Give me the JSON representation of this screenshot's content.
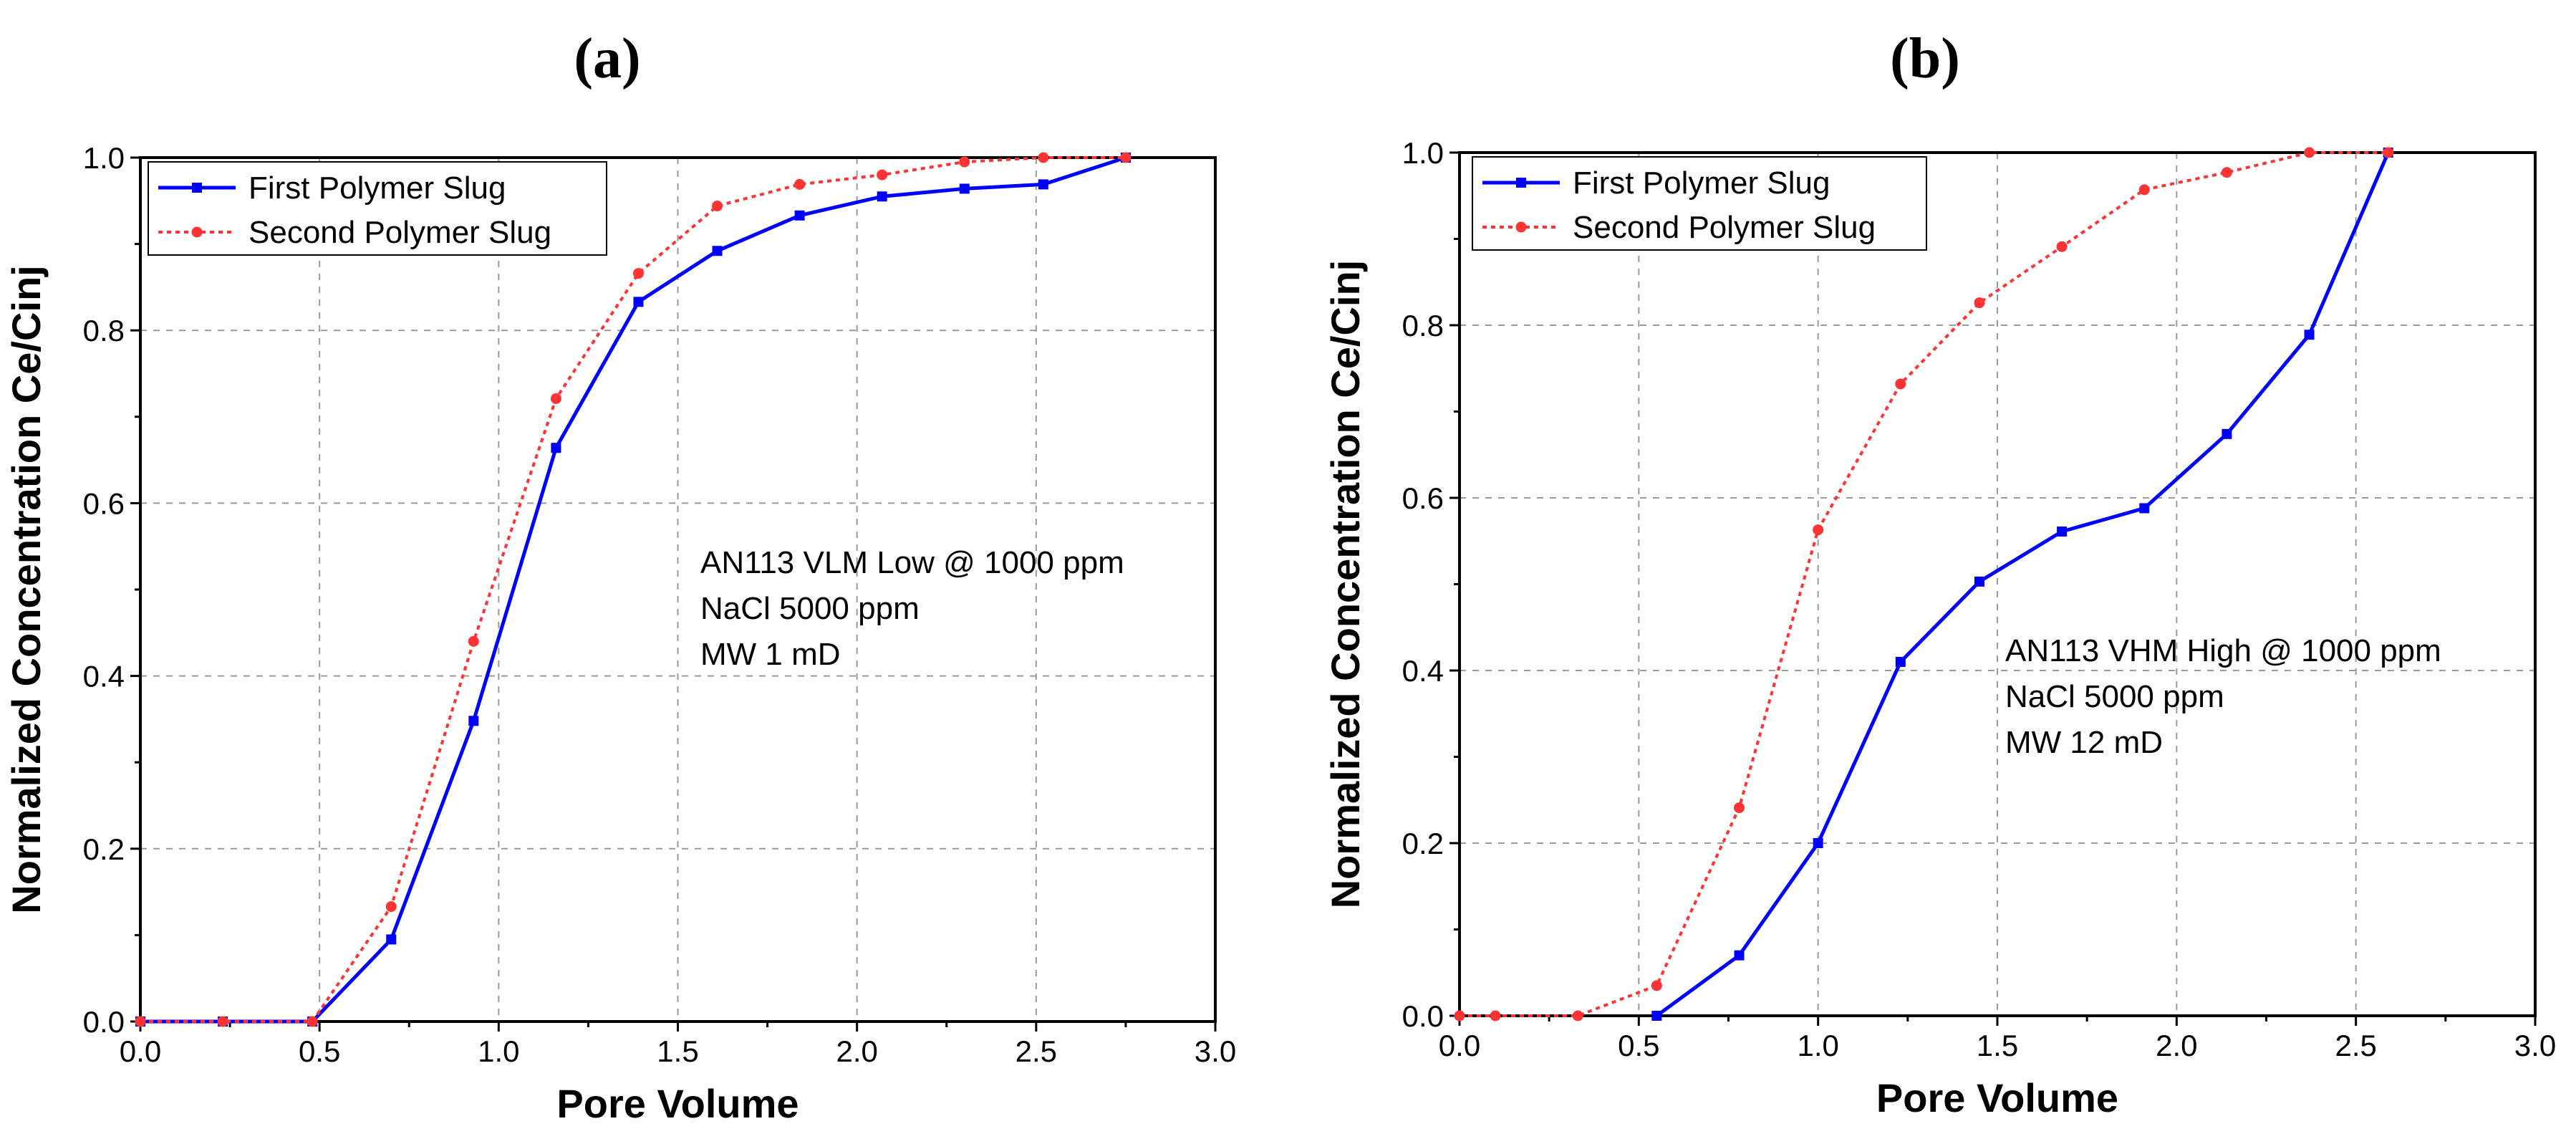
{
  "chart_data": [
    {
      "type": "line",
      "panel_label": "(a)",
      "xlabel": "Pore Volume",
      "ylabel": "Normalized Concentration Ce/Cinj",
      "xlim": [
        0,
        3.0
      ],
      "ylim": [
        0,
        1.0
      ],
      "xticks": [
        "0.0",
        "0.5",
        "1.0",
        "1.5",
        "2.0",
        "2.5",
        "3.0"
      ],
      "yticks": [
        "0.0",
        "0.2",
        "0.4",
        "0.6",
        "0.8",
        "1.0"
      ],
      "grid": true,
      "legend_position": "top-left",
      "annotation": [
        "AN113 VLM Low @ 1000 ppm",
        "NaCl 5000 ppm",
        "MW 1 mD"
      ],
      "series": [
        {
          "name": "First Polymer Slug",
          "color": "#0000ff",
          "style": "solid",
          "marker": "square",
          "x": [
            0.0,
            0.23,
            0.48,
            0.7,
            0.93,
            1.16,
            1.39,
            1.61,
            1.84,
            2.07,
            2.3,
            2.52,
            2.75
          ],
          "y": [
            0.0,
            0.0,
            0.0,
            0.095,
            0.348,
            0.664,
            0.833,
            0.892,
            0.933,
            0.955,
            0.964,
            0.969,
            1.0
          ]
        },
        {
          "name": "Second Polymer Slug",
          "color": "#ff3333",
          "style": "dotted",
          "marker": "circle",
          "x": [
            0.0,
            0.23,
            0.48,
            0.7,
            0.93,
            1.16,
            1.39,
            1.61,
            1.84,
            2.07,
            2.3,
            2.52,
            2.75
          ],
          "y": [
            0.0,
            0.0,
            0.0,
            0.133,
            0.44,
            0.721,
            0.866,
            0.944,
            0.969,
            0.98,
            0.995,
            1.0,
            1.0
          ]
        }
      ]
    },
    {
      "type": "line",
      "panel_label": "(b)",
      "xlabel": "Pore Volume",
      "ylabel": "Normalized Concentration Ce/Cinj",
      "xlim": [
        0,
        3.0
      ],
      "ylim": [
        0,
        1.0
      ],
      "xticks": [
        "0.0",
        "0.5",
        "1.0",
        "1.5",
        "2.0",
        "2.5",
        "3.0"
      ],
      "yticks": [
        "0.0",
        "0.2",
        "0.4",
        "0.6",
        "0.8",
        "1.0"
      ],
      "grid": true,
      "legend_position": "top-left",
      "annotation": [
        "AN113 VHM High @ 1000 ppm",
        "NaCl 5000 ppm",
        "MW 12 mD"
      ],
      "series": [
        {
          "name": "First Polymer Slug",
          "color": "#0000ff",
          "style": "solid",
          "marker": "square",
          "x": [
            0.55,
            0.78,
            1.0,
            1.23,
            1.45,
            1.68,
            1.91,
            2.14,
            2.37,
            2.59
          ],
          "y": [
            0.0,
            0.07,
            0.2,
            0.41,
            0.503,
            0.561,
            0.588,
            0.674,
            0.789,
            1.0
          ]
        },
        {
          "name": "Second Polymer Slug",
          "color": "#ff3333",
          "style": "dotted",
          "marker": "circle",
          "x": [
            0.0,
            0.1,
            0.33,
            0.55,
            0.78,
            1.0,
            1.23,
            1.45,
            1.68,
            1.91,
            2.14,
            2.37,
            2.59
          ],
          "y": [
            0.0,
            0.0,
            0.0,
            0.035,
            0.241,
            0.563,
            0.732,
            0.826,
            0.891,
            0.957,
            0.977,
            1.0,
            1.0
          ]
        }
      ]
    }
  ]
}
